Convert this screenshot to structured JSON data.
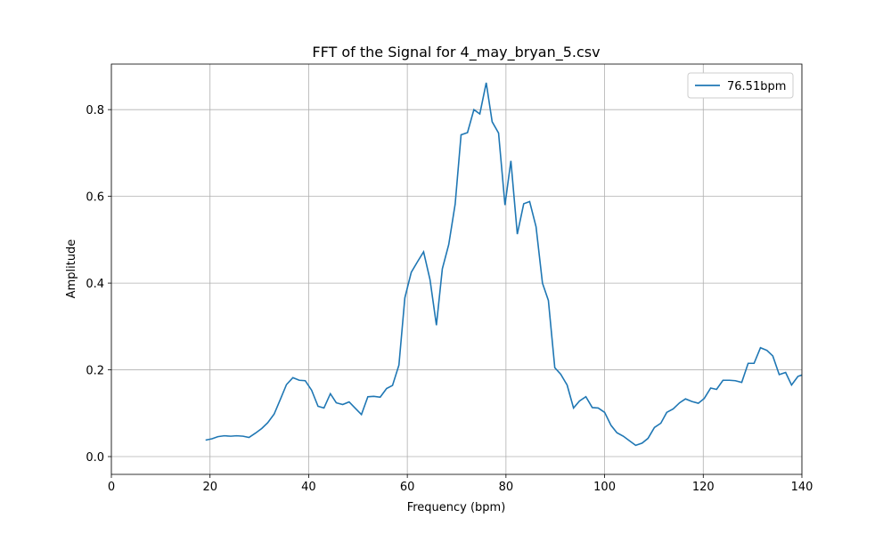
{
  "chart_data": {
    "type": "line",
    "title": "FFT of the Signal for 4_may_bryan_5.csv",
    "xlabel": "Frequency (bpm)",
    "ylabel": "Amplitude",
    "xlim": [
      0,
      140
    ],
    "xticks": [
      0,
      20,
      40,
      60,
      80,
      100,
      120,
      140
    ],
    "ylim": [
      -0.041,
      0.905
    ],
    "yticks": [
      {
        "value": 0,
        "label": "0.0"
      },
      0.2,
      0.4,
      0.6,
      0.8
    ],
    "grid": true,
    "legend": "upper right",
    "x": [
      19.1,
      20.4,
      21.6,
      22.9,
      24.2,
      25.4,
      26.7,
      27.9,
      29.2,
      30.5,
      31.7,
      33.0,
      34.3,
      35.5,
      36.8,
      38.1,
      39.3,
      40.6,
      41.9,
      43.1,
      44.4,
      45.6,
      46.9,
      48.2,
      49.4,
      50.7,
      52.0,
      53.2,
      54.5,
      55.8,
      57.0,
      58.3,
      59.5,
      60.8,
      62.1,
      63.3,
      64.6,
      65.9,
      67.1,
      68.4,
      69.7,
      70.9,
      72.2,
      73.5,
      74.7,
      76.0,
      77.2,
      78.5,
      79.8,
      81.0,
      82.3,
      83.6,
      84.8,
      86.1,
      87.4,
      88.6,
      89.9,
      91.1,
      92.4,
      93.7,
      94.9,
      96.2,
      97.5,
      98.7,
      100.0,
      101.3,
      102.5,
      103.8,
      105.1,
      106.3,
      107.6,
      108.8,
      110.1,
      111.4,
      112.6,
      113.9,
      115.2,
      116.4,
      117.7,
      119.0,
      120.2,
      121.5,
      122.7,
      124.0,
      125.3,
      126.5,
      127.8,
      129.1,
      130.3,
      131.6,
      132.9,
      134.1,
      135.4,
      136.7,
      137.9,
      139.2,
      140.5
    ],
    "series": [
      {
        "name": "76.51bpm",
        "color": "#1f77b4",
        "values": [
          0.038,
          0.041,
          0.046,
          0.048,
          0.047,
          0.048,
          0.047,
          0.044,
          0.054,
          0.065,
          0.078,
          0.098,
          0.133,
          0.166,
          0.182,
          0.176,
          0.175,
          0.153,
          0.116,
          0.112,
          0.145,
          0.124,
          0.12,
          0.126,
          0.112,
          0.097,
          0.138,
          0.139,
          0.137,
          0.157,
          0.164,
          0.211,
          0.366,
          0.425,
          0.45,
          0.472,
          0.408,
          0.303,
          0.433,
          0.489,
          0.582,
          0.742,
          0.747,
          0.8,
          0.79,
          0.862,
          0.772,
          0.746,
          0.58,
          0.682,
          0.513,
          0.583,
          0.588,
          0.53,
          0.4,
          0.36,
          0.205,
          0.19,
          0.165,
          0.112,
          0.128,
          0.138,
          0.113,
          0.112,
          0.102,
          0.072,
          0.055,
          0.047,
          0.036,
          0.026,
          0.031,
          0.042,
          0.067,
          0.077,
          0.102,
          0.11,
          0.124,
          0.133,
          0.127,
          0.123,
          0.134,
          0.158,
          0.155,
          0.176,
          0.176,
          0.175,
          0.171,
          0.215,
          0.215,
          0.251,
          0.245,
          0.232,
          0.189,
          0.194,
          0.165,
          0.185,
          0.19
        ]
      }
    ]
  }
}
